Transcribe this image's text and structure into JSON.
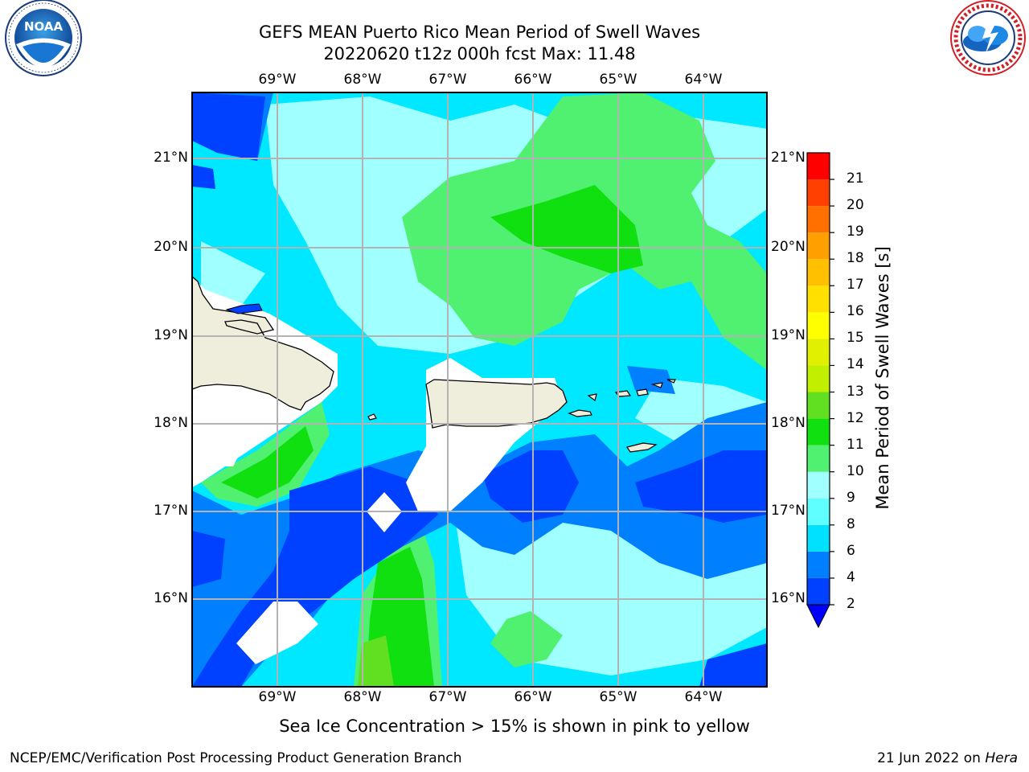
{
  "header": {
    "title_line1": "GEFS MEAN Puerto Rico Mean Period of Swell Waves",
    "title_line2": "20220620 t12z 000h fcst   Max: 11.48"
  },
  "logos": {
    "left": {
      "icon": "noaa-logo",
      "text": "NOAA",
      "ring_text": "NATIONAL OCEANIC AND ATMOSPHERIC ADMINISTRATION · U.S. DEPARTMENT OF COMMERCE"
    },
    "right": {
      "icon": "nws-logo",
      "ring_text": "NATIONAL WEATHER SERVICE"
    }
  },
  "map": {
    "lon_labels": [
      "69°W",
      "68°W",
      "67°W",
      "66°W",
      "65°W",
      "64°W"
    ],
    "lat_labels": [
      "21°N",
      "20°N",
      "19°N",
      "18°N",
      "17°N",
      "16°N"
    ],
    "extent": {
      "lon_min": -70.0,
      "lon_max": -63.25,
      "lat_min": 15.0,
      "lat_max": 21.75
    },
    "gridlines": true,
    "land_color": "#efeedc",
    "masked_color": "#ffffff"
  },
  "colorbar": {
    "label": "Mean Period of Swell Waves [s]",
    "ticks": [
      "2",
      "4",
      "6",
      "8",
      "9",
      "10",
      "11",
      "12",
      "13",
      "14",
      "15",
      "16",
      "17",
      "18",
      "19",
      "20",
      "21"
    ],
    "extend": "min",
    "colors": [
      "#0040ff",
      "#0080ff",
      "#00e0ff",
      "#60ffff",
      "#a0ffff",
      "#50f070",
      "#10e010",
      "#60e020",
      "#c0f000",
      "#e0f000",
      "#ffff00",
      "#ffe000",
      "#ffc000",
      "#ffa000",
      "#ff7000",
      "#ff4000",
      "#ff0000"
    ]
  },
  "footer": {
    "note": "Sea Ice Concentration > 15% is shown in pink to yellow",
    "left": "NCEP/EMC/Verification Post Processing Product Generation Branch",
    "right_date": "21 Jun 2022 on ",
    "right_host": "Hera"
  }
}
